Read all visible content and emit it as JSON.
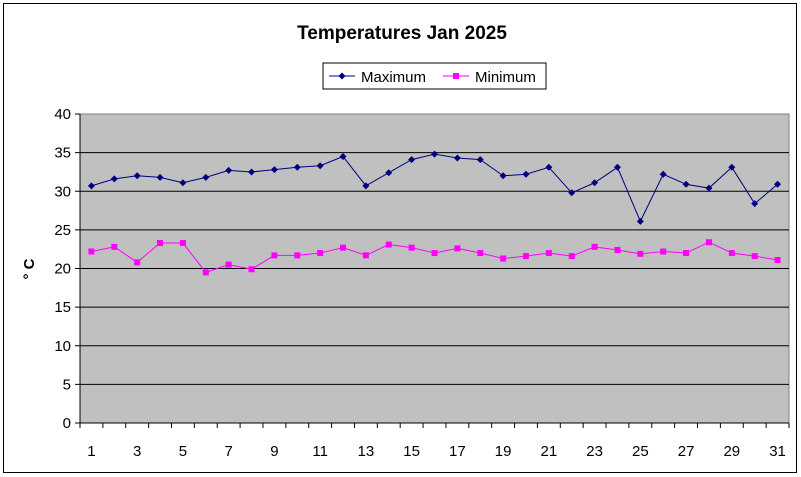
{
  "chart_data": {
    "type": "line",
    "title": "Temperatures Jan 2025",
    "xlabel": "",
    "ylabel": "° C",
    "ylim": [
      0,
      40
    ],
    "yticks": [
      0,
      5,
      10,
      15,
      20,
      25,
      30,
      35,
      40
    ],
    "x": [
      1,
      2,
      3,
      4,
      5,
      6,
      7,
      8,
      9,
      10,
      11,
      12,
      13,
      14,
      15,
      16,
      17,
      18,
      19,
      20,
      21,
      22,
      23,
      24,
      25,
      26,
      27,
      28,
      29,
      30,
      31
    ],
    "xtick_labels": [
      "1",
      "3",
      "5",
      "7",
      "9",
      "11",
      "13",
      "15",
      "17",
      "19",
      "21",
      "23",
      "25",
      "27",
      "29",
      "31"
    ],
    "grid": "horizontal",
    "legend_position": "top",
    "plot_background": "#c0c0c0",
    "series": [
      {
        "name": "Maximum",
        "color": "#000080",
        "marker": "diamond",
        "values": [
          30.7,
          31.6,
          32.0,
          31.8,
          31.1,
          31.8,
          32.7,
          32.5,
          32.8,
          33.1,
          33.3,
          34.5,
          30.7,
          32.4,
          34.1,
          34.8,
          34.3,
          34.1,
          32.0,
          32.2,
          33.1,
          29.8,
          31.1,
          33.1,
          26.1,
          32.2,
          30.9,
          30.4,
          33.1,
          28.4,
          30.9
        ]
      },
      {
        "name": "Minimum",
        "color": "#ff00ff",
        "marker": "square",
        "values": [
          22.2,
          22.8,
          20.8,
          23.3,
          23.3,
          19.5,
          20.5,
          19.9,
          21.7,
          21.7,
          22.0,
          22.7,
          21.7,
          23.1,
          22.7,
          22.0,
          22.6,
          22.0,
          21.3,
          21.6,
          22.0,
          21.6,
          22.8,
          22.4,
          21.9,
          22.2,
          22.0,
          23.4,
          22.0,
          21.6,
          21.1
        ]
      }
    ]
  }
}
